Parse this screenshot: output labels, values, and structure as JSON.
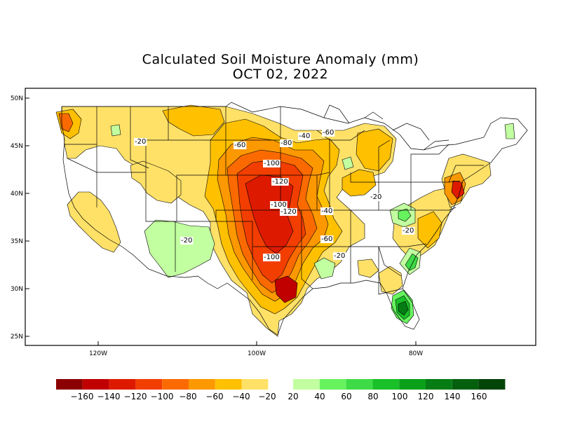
{
  "title": "Calculated Soil Moisture Anomaly (mm)",
  "date": "OCT 02, 2022",
  "axes": {
    "lat_ticks": [
      "50N",
      "45N",
      "40N",
      "35N",
      "30N",
      "25N"
    ],
    "lon_ticks": [
      "120W",
      "100W",
      "80W"
    ]
  },
  "contour_labels": [
    "-20",
    "-60",
    "-40",
    "-60",
    "-80",
    "-100",
    "-120",
    "-100",
    "-120",
    "-40",
    "-60",
    "-100",
    "-20",
    "-20",
    "-20",
    "-20"
  ],
  "legend": {
    "labels": [
      "−160",
      "−140",
      "−120",
      "−100",
      "−80",
      "−60",
      "−40",
      "−20",
      "20",
      "40",
      "60",
      "80",
      "100",
      "120",
      "140",
      "160"
    ],
    "dry_colors": [
      "#8b0000",
      "#c00000",
      "#dd1a00",
      "#f23e00",
      "#fa6a00",
      "#fc9800",
      "#ffc000",
      "#ffe168"
    ],
    "wet_colors": [
      "#c2ffa0",
      "#67f35e",
      "#3edb47",
      "#19c028",
      "#0aa01a",
      "#067c14",
      "#05600e",
      "#034508"
    ]
  },
  "colors": {
    "light_orange": "#ffe168",
    "orange": "#ffc000",
    "dark_orange": "#fc9800",
    "red_orange": "#fa6a00",
    "red": "#f23e00",
    "deep_red": "#dd1a00",
    "crimson": "#c00000",
    "light_green": "#c2ffa0",
    "green": "#3edb47",
    "dark_green": "#0aa01a"
  }
}
